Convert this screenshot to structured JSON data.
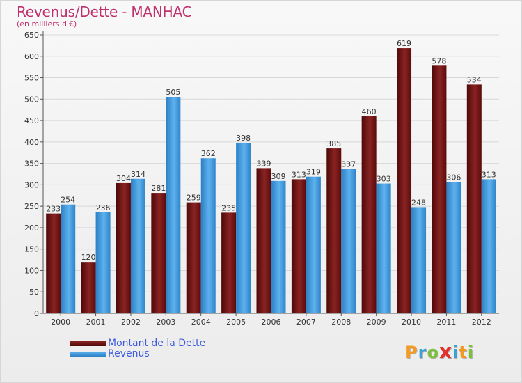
{
  "title": "Revenus/Dette - MANHAC",
  "subtitle": "(en milliers d'€)",
  "chart_data": {
    "type": "bar",
    "categories": [
      "2000",
      "2001",
      "2002",
      "2003",
      "2004",
      "2005",
      "2006",
      "2007",
      "2008",
      "2009",
      "2010",
      "2011",
      "2012"
    ],
    "series": [
      {
        "name": "Montant de la Dette",
        "color": "#6b1010",
        "values": [
          233,
          120,
          304,
          281,
          259,
          235,
          339,
          313,
          385,
          460,
          619,
          578,
          534
        ]
      },
      {
        "name": "Revenus",
        "color": "#3a93d8",
        "values": [
          254,
          236,
          314,
          505,
          362,
          398,
          309,
          319,
          337,
          303,
          248,
          306,
          313
        ]
      }
    ],
    "ylim": [
      0,
      650
    ],
    "yticks": [
      0,
      50,
      100,
      150,
      200,
      250,
      300,
      350,
      400,
      450,
      500,
      550,
      600,
      650
    ],
    "grid": true,
    "legend": "bottom-left"
  },
  "legend": {
    "items": [
      {
        "label": "Montant de la Dette",
        "color": "#6b1010"
      },
      {
        "label": "Revenus",
        "color": "#3a93d8"
      }
    ]
  },
  "logo": {
    "text": "Proxiti",
    "letters": [
      {
        "ch": "P",
        "color": "#f29a21"
      },
      {
        "ch": "r",
        "color": "#3aa0d8"
      },
      {
        "ch": "o",
        "color": "#7bbf3a"
      },
      {
        "ch": "x",
        "color": "#e2312c"
      },
      {
        "ch": "i",
        "color": "#3aa0d8"
      },
      {
        "ch": "t",
        "color": "#f29a21"
      },
      {
        "ch": "i",
        "color": "#7bbf3a"
      }
    ]
  }
}
